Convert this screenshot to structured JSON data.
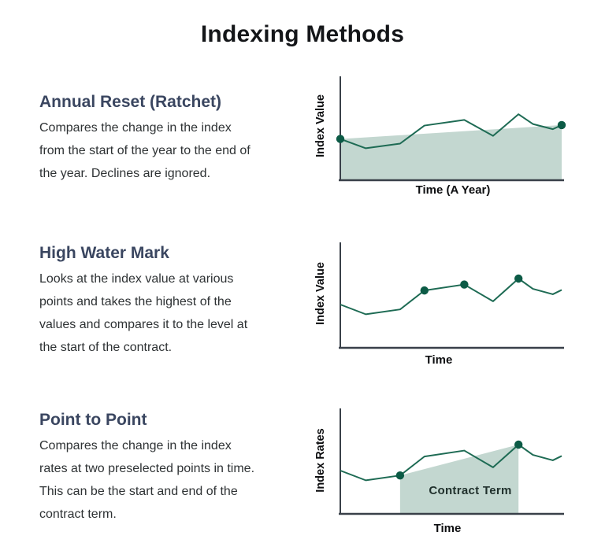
{
  "page": {
    "title": "Indexing Methods"
  },
  "sections": [
    {
      "heading": "Annual Reset (Ratchet)",
      "body": "Compares the change in the index\nfrom the start of the year to the end of\nthe year. Declines are ignored."
    },
    {
      "heading": "High Water Mark",
      "body": "Looks at the index value at various\npoints and takes the highest of the\nvalues and compares it to the level at\nthe start of the contract."
    },
    {
      "heading": "Point to Point",
      "body": "Compares the change in the index\nrates at two preselected points in time.\nThis can be the start and end of the\ncontract term."
    }
  ],
  "colors": {
    "line": "#1e6b54",
    "marker": "#0c5b46",
    "fill": "#c3d7d0",
    "axis": "#394049",
    "heading": "#3a4660",
    "body_text": "#2e3234",
    "title": "#141619"
  },
  "chart_data": [
    {
      "type": "line",
      "name": "annual-reset-ratchet",
      "ylabel": "Index Value",
      "xlabel": "Time (A Year)",
      "x": [
        0,
        1.15,
        2.7,
        3.8,
        5.6,
        6.9,
        8.05,
        8.7,
        9.6,
        10
      ],
      "y": [
        4.0,
        3.1,
        3.55,
        5.3,
        5.85,
        4.3,
        6.4,
        5.45,
        4.95,
        5.35
      ],
      "marker_indices": [
        0,
        9
      ],
      "shade": {
        "from_index": 0,
        "to_index": 9
      },
      "shade_label": "",
      "axis_ticks": "none",
      "legend": "none"
    },
    {
      "type": "line",
      "name": "high-water-mark",
      "ylabel": "Index Value",
      "xlabel": "Time",
      "x": [
        0,
        1.15,
        2.7,
        3.8,
        5.6,
        6.9,
        8.05,
        8.7,
        9.6,
        10
      ],
      "y": [
        4.0,
        3.1,
        3.55,
        5.3,
        5.85,
        4.3,
        6.4,
        5.45,
        4.95,
        5.35
      ],
      "marker_indices": [
        3,
        4,
        6
      ],
      "shade": null,
      "shade_label": "",
      "axis_ticks": "none",
      "legend": "none"
    },
    {
      "type": "line",
      "name": "point-to-point",
      "ylabel": "Index Rates",
      "xlabel": "Time",
      "x": [
        0,
        1.15,
        2.7,
        3.8,
        5.6,
        6.9,
        8.05,
        8.7,
        9.6,
        10
      ],
      "y": [
        4.0,
        3.1,
        3.55,
        5.3,
        5.85,
        4.3,
        6.4,
        5.45,
        4.95,
        5.35
      ],
      "marker_indices": [
        2,
        6
      ],
      "shade": {
        "from_index": 2,
        "to_index": 6
      },
      "shade_label": "Contract Term",
      "axis_ticks": "none",
      "legend": "none"
    }
  ]
}
